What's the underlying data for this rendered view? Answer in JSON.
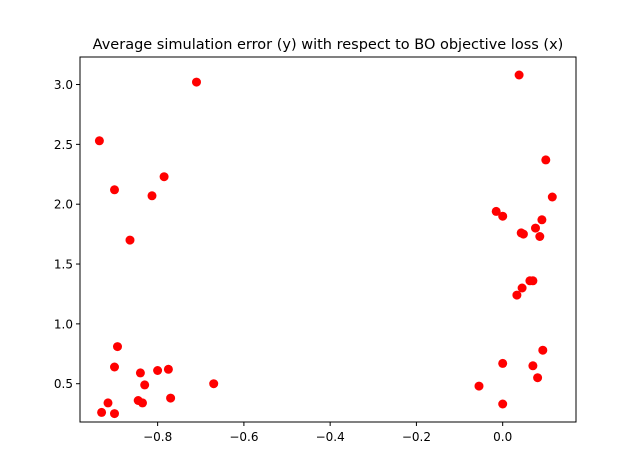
{
  "chart_data": {
    "type": "scatter",
    "title": "Average simulation error (y) with respect to BO objective loss (x)",
    "xlabel": "",
    "ylabel": "",
    "xlim": [
      -0.98,
      0.17
    ],
    "ylim": [
      0.18,
      3.23
    ],
    "x_ticks": [
      -0.8,
      -0.6,
      -0.4,
      -0.2,
      0.0
    ],
    "x_tick_labels": [
      "−0.8",
      "−0.6",
      "−0.4",
      "−0.2",
      "0.0"
    ],
    "y_ticks": [
      0.5,
      1.0,
      1.5,
      2.0,
      2.5,
      3.0
    ],
    "y_tick_labels": [
      "0.5",
      "1.0",
      "1.5",
      "2.0",
      "2.5",
      "3.0"
    ],
    "grid": false,
    "marker_color": "#ff0000",
    "points": [
      {
        "x": -0.935,
        "y": 2.53
      },
      {
        "x": -0.93,
        "y": 0.26
      },
      {
        "x": -0.915,
        "y": 0.34
      },
      {
        "x": -0.9,
        "y": 2.12
      },
      {
        "x": -0.9,
        "y": 0.64
      },
      {
        "x": -0.9,
        "y": 0.25
      },
      {
        "x": -0.893,
        "y": 0.81
      },
      {
        "x": -0.864,
        "y": 1.7
      },
      {
        "x": -0.845,
        "y": 0.36
      },
      {
        "x": -0.84,
        "y": 0.59
      },
      {
        "x": -0.835,
        "y": 0.34
      },
      {
        "x": -0.83,
        "y": 0.49
      },
      {
        "x": -0.813,
        "y": 2.07
      },
      {
        "x": -0.8,
        "y": 0.61
      },
      {
        "x": -0.785,
        "y": 2.23
      },
      {
        "x": -0.775,
        "y": 0.62
      },
      {
        "x": -0.77,
        "y": 0.38
      },
      {
        "x": -0.71,
        "y": 3.02
      },
      {
        "x": -0.67,
        "y": 0.5
      },
      {
        "x": -0.055,
        "y": 0.48
      },
      {
        "x": -0.015,
        "y": 1.94
      },
      {
        "x": 0.0,
        "y": 1.9
      },
      {
        "x": 0.0,
        "y": 0.67
      },
      {
        "x": 0.0,
        "y": 0.33
      },
      {
        "x": 0.033,
        "y": 1.24
      },
      {
        "x": 0.038,
        "y": 3.08
      },
      {
        "x": 0.043,
        "y": 1.76
      },
      {
        "x": 0.045,
        "y": 1.3
      },
      {
        "x": 0.048,
        "y": 1.75
      },
      {
        "x": 0.063,
        "y": 1.36
      },
      {
        "x": 0.07,
        "y": 1.36
      },
      {
        "x": 0.07,
        "y": 0.65
      },
      {
        "x": 0.076,
        "y": 1.8
      },
      {
        "x": 0.081,
        "y": 0.55
      },
      {
        "x": 0.086,
        "y": 1.73
      },
      {
        "x": 0.091,
        "y": 1.87
      },
      {
        "x": 0.093,
        "y": 0.78
      },
      {
        "x": 0.1,
        "y": 2.37
      },
      {
        "x": 0.115,
        "y": 2.06
      }
    ]
  }
}
